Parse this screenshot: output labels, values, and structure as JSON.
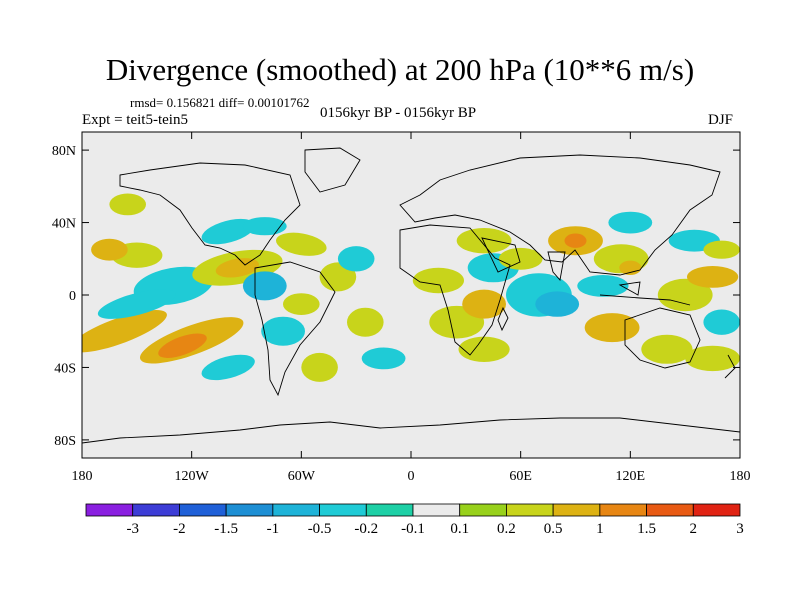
{
  "header": {
    "title": "Divergence (smoothed) at 200 hPa (10**6 m/s)",
    "stats": "rmsd= 0.156821 diff= 0.00101762",
    "experiment": "Expt = teit5-tein5",
    "period": "0156kyr BP - 0156kyr BP",
    "season": "DJF"
  },
  "chart_data": {
    "type": "heatmap",
    "title": "Divergence (smoothed) at 200 hPa (10**6 m/s)",
    "subtitle": "0156kyr BP - 0156kyr BP",
    "projection": "cylindrical equidistant (global map)",
    "units": "10**6 m/s",
    "x_axis": {
      "range": [
        -180,
        180
      ],
      "ticks": [
        -180,
        -120,
        -60,
        0,
        60,
        120,
        180
      ],
      "tick_labels": [
        "180",
        "120W",
        "60W",
        "0",
        "60E",
        "120E",
        "180"
      ]
    },
    "y_axis": {
      "range": [
        -90,
        90
      ],
      "ticks": [
        80,
        40,
        0,
        -40,
        -80
      ],
      "tick_labels": [
        "80N",
        "40N",
        "0",
        "40S",
        "80S"
      ]
    },
    "colorbar": {
      "levels": [
        "-3",
        "-2",
        "-1.5",
        "-1",
        "-0.5",
        "-0.2",
        "-0.1",
        "0.1",
        "0.2",
        "0.5",
        "1",
        "1.5",
        "2",
        "3"
      ],
      "colors": [
        "#8a1fe0",
        "#3d3dd6",
        "#1f60d8",
        "#1e8fd4",
        "#1eb3d8",
        "#1fcbd6",
        "#1ed0a6",
        "#ebebeb",
        "#98d11b",
        "#c8d41b",
        "#ddb213",
        "#e78613",
        "#e85a13",
        "#e02313"
      ]
    },
    "anomalies": [
      {
        "lon": -130,
        "lat": 5,
        "rx": 22,
        "ry": 10,
        "rot": -10,
        "level": "-0.2"
      },
      {
        "lon": -150,
        "lat": 22,
        "rx": 14,
        "ry": 7,
        "rot": 0,
        "level": "0.2"
      },
      {
        "lon": -165,
        "lat": 25,
        "rx": 10,
        "ry": 6,
        "rot": 0,
        "level": "0.5"
      },
      {
        "lon": -155,
        "lat": 50,
        "rx": 10,
        "ry": 6,
        "rot": 0,
        "level": "0.2"
      },
      {
        "lon": -95,
        "lat": 15,
        "rx": 25,
        "ry": 9,
        "rot": -10,
        "level": "0.2"
      },
      {
        "lon": -95,
        "lat": 15,
        "rx": 12,
        "ry": 5,
        "rot": -10,
        "level": "0.5"
      },
      {
        "lon": -100,
        "lat": 35,
        "rx": 15,
        "ry": 6,
        "rot": -15,
        "level": "-0.2"
      },
      {
        "lon": -80,
        "lat": 38,
        "rx": 12,
        "ry": 5,
        "rot": 0,
        "level": "-0.2"
      },
      {
        "lon": -60,
        "lat": 28,
        "rx": 14,
        "ry": 6,
        "rot": 10,
        "level": "0.2"
      },
      {
        "lon": -80,
        "lat": 5,
        "rx": 12,
        "ry": 8,
        "rot": 0,
        "level": "-0.5"
      },
      {
        "lon": -60,
        "lat": -5,
        "rx": 10,
        "ry": 6,
        "rot": 0,
        "level": "0.2"
      },
      {
        "lon": -40,
        "lat": 10,
        "rx": 10,
        "ry": 8,
        "rot": 0,
        "level": "0.2"
      },
      {
        "lon": -30,
        "lat": 20,
        "rx": 10,
        "ry": 7,
        "rot": 0,
        "level": "-0.2"
      },
      {
        "lon": -160,
        "lat": -20,
        "rx": 28,
        "ry": 7,
        "rot": -20,
        "level": "0.5"
      },
      {
        "lon": -120,
        "lat": -25,
        "rx": 30,
        "ry": 8,
        "rot": -20,
        "level": "0.5"
      },
      {
        "lon": -125,
        "lat": -28,
        "rx": 14,
        "ry": 5,
        "rot": -20,
        "level": "1"
      },
      {
        "lon": -150,
        "lat": -5,
        "rx": 22,
        "ry": 6,
        "rot": -15,
        "level": "-0.2"
      },
      {
        "lon": -100,
        "lat": -40,
        "rx": 15,
        "ry": 6,
        "rot": -15,
        "level": "-0.2"
      },
      {
        "lon": -70,
        "lat": -20,
        "rx": 12,
        "ry": 8,
        "rot": 0,
        "level": "-0.2"
      },
      {
        "lon": -50,
        "lat": -40,
        "rx": 10,
        "ry": 8,
        "rot": 0,
        "level": "0.2"
      },
      {
        "lon": -25,
        "lat": -15,
        "rx": 10,
        "ry": 8,
        "rot": 0,
        "level": "0.2"
      },
      {
        "lon": -15,
        "lat": -35,
        "rx": 12,
        "ry": 6,
        "rot": 0,
        "level": "-0.2"
      },
      {
        "lon": 15,
        "lat": 8,
        "rx": 14,
        "ry": 7,
        "rot": 0,
        "level": "0.2"
      },
      {
        "lon": 25,
        "lat": -15,
        "rx": 15,
        "ry": 9,
        "rot": 0,
        "level": "0.2"
      },
      {
        "lon": 40,
        "lat": -5,
        "rx": 12,
        "ry": 8,
        "rot": 0,
        "level": "0.5"
      },
      {
        "lon": 40,
        "lat": -30,
        "rx": 14,
        "ry": 7,
        "rot": 0,
        "level": "0.2"
      },
      {
        "lon": 45,
        "lat": 15,
        "rx": 14,
        "ry": 8,
        "rot": 0,
        "level": "-0.2"
      },
      {
        "lon": 40,
        "lat": 30,
        "rx": 15,
        "ry": 7,
        "rot": 0,
        "level": "0.2"
      },
      {
        "lon": 60,
        "lat": 20,
        "rx": 12,
        "ry": 6,
        "rot": 0,
        "level": "0.2"
      },
      {
        "lon": 70,
        "lat": 0,
        "rx": 18,
        "ry": 12,
        "rot": 0,
        "level": "-0.2"
      },
      {
        "lon": 80,
        "lat": -5,
        "rx": 12,
        "ry": 7,
        "rot": 0,
        "level": "-0.5"
      },
      {
        "lon": 90,
        "lat": 30,
        "rx": 15,
        "ry": 8,
        "rot": 0,
        "level": "0.5"
      },
      {
        "lon": 90,
        "lat": 30,
        "rx": 6,
        "ry": 4,
        "rot": 0,
        "level": "1"
      },
      {
        "lon": 115,
        "lat": 20,
        "rx": 15,
        "ry": 8,
        "rot": 0,
        "level": "0.2"
      },
      {
        "lon": 120,
        "lat": 15,
        "rx": 6,
        "ry": 4,
        "rot": 0,
        "level": "0.5"
      },
      {
        "lon": 105,
        "lat": 5,
        "rx": 14,
        "ry": 6,
        "rot": 0,
        "level": "-0.2"
      },
      {
        "lon": 110,
        "lat": -18,
        "rx": 15,
        "ry": 8,
        "rot": 0,
        "level": "0.5"
      },
      {
        "lon": 120,
        "lat": 40,
        "rx": 12,
        "ry": 6,
        "rot": 0,
        "level": "-0.2"
      },
      {
        "lon": 150,
        "lat": 0,
        "rx": 15,
        "ry": 9,
        "rot": 0,
        "level": "0.2"
      },
      {
        "lon": 165,
        "lat": 10,
        "rx": 14,
        "ry": 6,
        "rot": 0,
        "level": "0.5"
      },
      {
        "lon": 155,
        "lat": 30,
        "rx": 14,
        "ry": 6,
        "rot": 0,
        "level": "-0.2"
      },
      {
        "lon": 170,
        "lat": 25,
        "rx": 10,
        "ry": 5,
        "rot": 0,
        "level": "0.2"
      },
      {
        "lon": 140,
        "lat": -30,
        "rx": 14,
        "ry": 8,
        "rot": 0,
        "level": "0.2"
      },
      {
        "lon": 165,
        "lat": -35,
        "rx": 15,
        "ry": 7,
        "rot": 0,
        "level": "0.2"
      },
      {
        "lon": 170,
        "lat": -15,
        "rx": 10,
        "ry": 7,
        "rot": 0,
        "level": "-0.2"
      }
    ]
  }
}
